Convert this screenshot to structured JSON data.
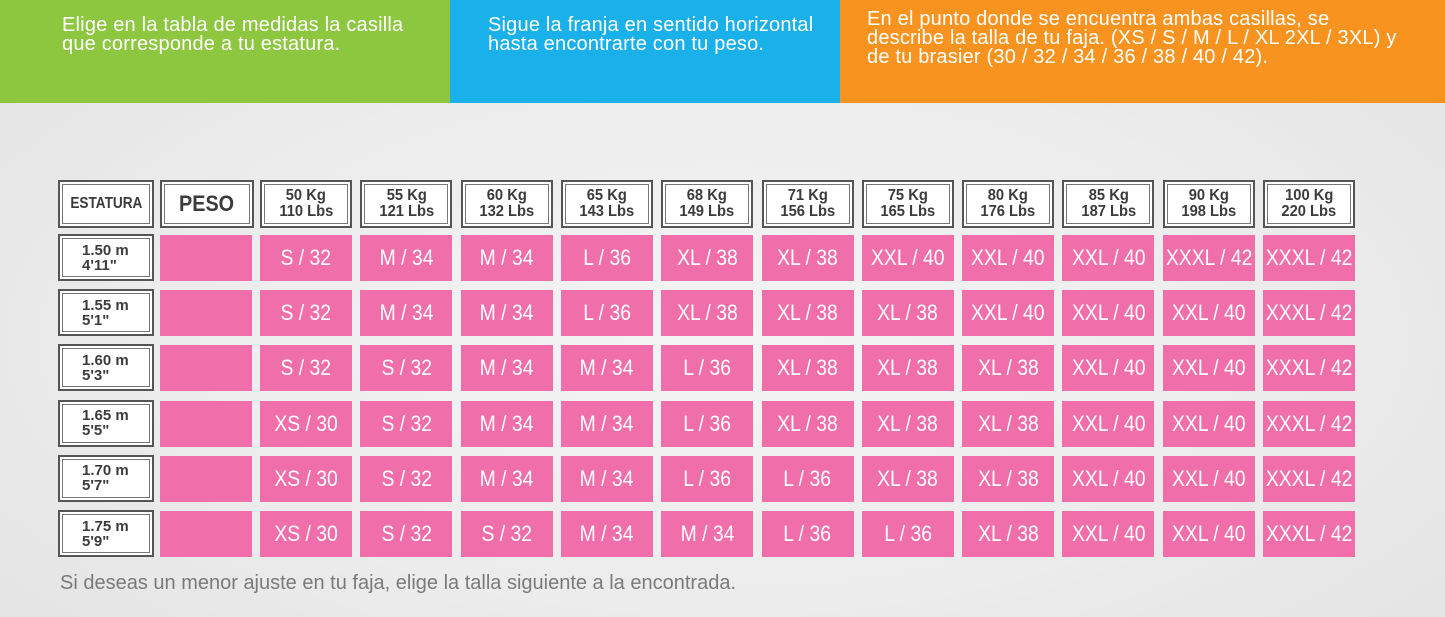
{
  "instructions": [
    "Elige en la tabla de medidas la casilla que corresponde a tu estatura.",
    "Sigue la franja en sentido horizontal hasta encontrarte con tu peso.",
    "En el punto donde se encuentra ambas casillas, se describe la talla de tu faja. (XS / S / M / L / XL 2XL / 3XL) y de tu brasier (30 / 32 / 34 / 36 / 38 / 40 / 42)."
  ],
  "colors": {
    "green": "#8dc63f",
    "blue": "#1ab0ea",
    "orange": "#f7931e",
    "pink": "#f06eaa"
  },
  "table": {
    "height_label": "ESTATURA",
    "weight_label": "PESO",
    "weights": [
      {
        "kg": "50 Kg",
        "lbs": "110 Lbs"
      },
      {
        "kg": "55 Kg",
        "lbs": "121 Lbs"
      },
      {
        "kg": "60 Kg",
        "lbs": "132 Lbs"
      },
      {
        "kg": "65 Kg",
        "lbs": "143 Lbs"
      },
      {
        "kg": "68 Kg",
        "lbs": "149 Lbs"
      },
      {
        "kg": "71 Kg",
        "lbs": "156 Lbs"
      },
      {
        "kg": "75 Kg",
        "lbs": "165 Lbs"
      },
      {
        "kg": "80 Kg",
        "lbs": "176 Lbs"
      },
      {
        "kg": "85 Kg",
        "lbs": "187 Lbs"
      },
      {
        "kg": "90 Kg",
        "lbs": "198 Lbs"
      },
      {
        "kg": "100 Kg",
        "lbs": "220 Lbs"
      }
    ],
    "rows": [
      {
        "m": "1.50 m",
        "ft": "4'11\"",
        "sizes": [
          "S / 32",
          "M / 34",
          "M / 34",
          "L / 36",
          "XL / 38",
          "XL / 38",
          "XXL / 40",
          "XXL / 40",
          "XXL / 40",
          "XXXL / 42",
          "XXXL / 42"
        ]
      },
      {
        "m": "1.55 m",
        "ft": "5'1\"",
        "sizes": [
          "S / 32",
          "M / 34",
          "M / 34",
          "L / 36",
          "XL / 38",
          "XL / 38",
          "XL / 38",
          "XXL / 40",
          "XXL / 40",
          "XXL / 40",
          "XXXL / 42"
        ]
      },
      {
        "m": "1.60 m",
        "ft": "5'3\"",
        "sizes": [
          "S / 32",
          "S / 32",
          "M / 34",
          "M / 34",
          "L / 36",
          "XL / 38",
          "XL / 38",
          "XL / 38",
          "XXL / 40",
          "XXL / 40",
          "XXXL / 42"
        ]
      },
      {
        "m": "1.65 m",
        "ft": "5'5\"",
        "sizes": [
          "XS / 30",
          "S / 32",
          "M / 34",
          "M / 34",
          "L / 36",
          "XL / 38",
          "XL / 38",
          "XL / 38",
          "XXL / 40",
          "XXL / 40",
          "XXXL / 42"
        ]
      },
      {
        "m": "1.70 m",
        "ft": "5'7\"",
        "sizes": [
          "XS / 30",
          "S / 32",
          "M / 34",
          "M / 34",
          "L / 36",
          "L / 36",
          "XL / 38",
          "XL / 38",
          "XXL / 40",
          "XXL / 40",
          "XXXL / 42"
        ]
      },
      {
        "m": "1.75 m",
        "ft": "5'9\"",
        "sizes": [
          "XS / 30",
          "S / 32",
          "S / 32",
          "M / 34",
          "M / 34",
          "L / 36",
          "L / 36",
          "XL / 38",
          "XXL / 40",
          "XXL / 40",
          "XXXL / 42"
        ]
      }
    ]
  },
  "note": "Si deseas un menor ajuste en tu faja, elige la talla siguiente a la encontrada."
}
